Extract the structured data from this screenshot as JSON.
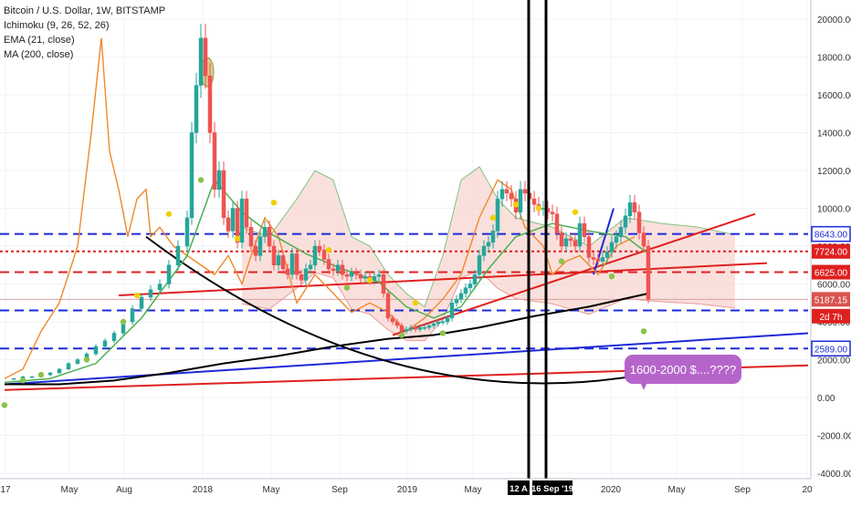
{
  "legend": {
    "symbol": "Bitcoin / U.S. Dollar, 1W, BITSTAMP",
    "ichimoku": "Ichimoku (9, 26, 52, 26)",
    "ema": "EMA (21, close)",
    "ma": "MA (200, close)"
  },
  "callout": {
    "text": "1600-2000 $....????"
  },
  "colors": {
    "up_candle": "#26a69a",
    "down_candle": "#ef5350",
    "ema": "#4caf50",
    "ma200": "#000000",
    "orange_line": "#f0892b",
    "blue_dashed": "#1c2ad8",
    "red_level": "#e02020",
    "callout": "#b565c9"
  },
  "chart_data": {
    "type": "candlestick",
    "y_axis": {
      "range": [
        -4000,
        21000
      ],
      "ticks": [
        "20000.00",
        "18000.00",
        "16000.00",
        "14000.00",
        "12000.00",
        "10000.00",
        "8000.00",
        "6000.00",
        "4000.00",
        "2000.00",
        "0.00",
        "-2000.00",
        "-4000.00"
      ]
    },
    "x_axis": {
      "ticks": [
        "17",
        "May",
        "Aug",
        "2018",
        "May",
        "Sep",
        "2019",
        "May",
        "12 A",
        "16 Sep '19",
        "2020",
        "May",
        "Sep",
        "20"
      ]
    },
    "price_labels": [
      {
        "text": "8643.00",
        "value": 8643,
        "style": "blue"
      },
      {
        "text": "7724.00",
        "value": 7724,
        "style": "red"
      },
      {
        "text": "6625.00",
        "value": 6625,
        "style": "red"
      },
      {
        "text": "5187.15",
        "value": 5187.15,
        "style": "current"
      },
      {
        "text": "2d 7h",
        "value": 4300,
        "style": "countdown"
      },
      {
        "text": "2589.00",
        "value": 2589,
        "style": "blue"
      }
    ],
    "horizontal_levels": [
      {
        "value": 8643,
        "style": "blue-dashed"
      },
      {
        "value": 7724,
        "style": "red-dotted"
      },
      {
        "value": 6625,
        "style": "red-dashed"
      },
      {
        "value": 4600,
        "style": "blue-dashed"
      },
      {
        "value": 2589,
        "style": "blue-dashed"
      }
    ],
    "vertical_markers": [
      "12 A",
      "16 Sep '19"
    ],
    "series": [
      {
        "kind": "price",
        "points": [
          [
            0,
            1000
          ],
          [
            10,
            1000
          ],
          [
            20,
            1100
          ],
          [
            30,
            1100
          ],
          [
            40,
            1200
          ],
          [
            50,
            1300
          ],
          [
            60,
            1500
          ],
          [
            70,
            1800
          ],
          [
            80,
            2000
          ],
          [
            90,
            2300
          ],
          [
            100,
            2700
          ],
          [
            110,
            3000
          ],
          [
            120,
            3400
          ],
          [
            130,
            4000
          ],
          [
            140,
            4700
          ],
          [
            150,
            5300
          ],
          [
            160,
            5700
          ],
          [
            170,
            6000
          ],
          [
            180,
            7000
          ],
          [
            190,
            8000
          ],
          [
            200,
            9500
          ],
          [
            205,
            14000
          ],
          [
            210,
            16500
          ],
          [
            215,
            19000
          ],
          [
            220,
            17000
          ],
          [
            225,
            14000
          ],
          [
            230,
            11000
          ],
          [
            235,
            12000
          ],
          [
            240,
            9500
          ],
          [
            245,
            8800
          ],
          [
            250,
            10000
          ],
          [
            255,
            8200
          ],
          [
            260,
            10500
          ],
          [
            265,
            9000
          ],
          [
            270,
            8000
          ],
          [
            275,
            7500
          ],
          [
            280,
            8500
          ],
          [
            285,
            9000
          ],
          [
            290,
            8000
          ],
          [
            295,
            7000
          ],
          [
            300,
            7500
          ],
          [
            305,
            6800
          ],
          [
            310,
            6500
          ],
          [
            315,
            7600
          ],
          [
            320,
            6500
          ],
          [
            325,
            6200
          ],
          [
            330,
            6800
          ],
          [
            335,
            7000
          ],
          [
            340,
            8000
          ],
          [
            345,
            7800
          ],
          [
            350,
            7300
          ],
          [
            355,
            6800
          ],
          [
            360,
            6700
          ],
          [
            365,
            7000
          ],
          [
            370,
            6500
          ],
          [
            375,
            6400
          ],
          [
            380,
            6600
          ],
          [
            385,
            6500
          ],
          [
            390,
            6300
          ],
          [
            395,
            6400
          ],
          [
            400,
            6200
          ],
          [
            405,
            6400
          ],
          [
            410,
            6500
          ],
          [
            415,
            5500
          ],
          [
            420,
            4200
          ],
          [
            425,
            4000
          ],
          [
            430,
            3800
          ],
          [
            435,
            3500
          ],
          [
            440,
            3600
          ],
          [
            445,
            3700
          ],
          [
            450,
            3600
          ],
          [
            455,
            3700
          ],
          [
            460,
            3700
          ],
          [
            465,
            3800
          ],
          [
            470,
            3900
          ],
          [
            475,
            4000
          ],
          [
            480,
            4000
          ],
          [
            485,
            4200
          ],
          [
            490,
            5000
          ],
          [
            495,
            5200
          ],
          [
            500,
            5500
          ],
          [
            505,
            5800
          ],
          [
            510,
            6000
          ],
          [
            515,
            6500
          ],
          [
            520,
            7500
          ],
          [
            525,
            8000
          ],
          [
            530,
            8200
          ],
          [
            535,
            8800
          ],
          [
            540,
            10500
          ],
          [
            545,
            11000
          ],
          [
            550,
            10800
          ],
          [
            555,
            10500
          ],
          [
            560,
            9800
          ],
          [
            565,
            11000
          ],
          [
            570,
            10800
          ],
          [
            575,
            10500
          ],
          [
            580,
            10200
          ],
          [
            585,
            10000
          ],
          [
            590,
            10000
          ],
          [
            595,
            9800
          ],
          [
            600,
            9700
          ],
          [
            605,
            8700
          ],
          [
            610,
            8000
          ],
          [
            615,
            8400
          ],
          [
            620,
            8300
          ],
          [
            625,
            8000
          ],
          [
            630,
            9200
          ],
          [
            635,
            8500
          ],
          [
            640,
            7400
          ],
          [
            645,
            7300
          ],
          [
            650,
            7200
          ],
          [
            655,
            7400
          ],
          [
            660,
            7700
          ],
          [
            665,
            8200
          ],
          [
            670,
            8500
          ],
          [
            675,
            9000
          ],
          [
            680,
            9600
          ],
          [
            685,
            10300
          ],
          [
            690,
            9800
          ],
          [
            695,
            8700
          ],
          [
            700,
            8000
          ],
          [
            705,
            5187
          ]
        ]
      },
      {
        "kind": "ema",
        "points": [
          [
            0,
            800
          ],
          [
            50,
            1000
          ],
          [
            100,
            1800
          ],
          [
            150,
            4200
          ],
          [
            200,
            7500
          ],
          [
            230,
            11500
          ],
          [
            260,
            9800
          ],
          [
            290,
            8700
          ],
          [
            330,
            7600
          ],
          [
            370,
            6800
          ],
          [
            410,
            6100
          ],
          [
            440,
            4800
          ],
          [
            470,
            4200
          ],
          [
            500,
            4800
          ],
          [
            530,
            6800
          ],
          [
            560,
            8500
          ],
          [
            600,
            9200
          ],
          [
            640,
            8800
          ],
          [
            680,
            8500
          ],
          [
            705,
            7600
          ]
        ]
      },
      {
        "kind": "ma200",
        "points": [
          [
            0,
            700
          ],
          [
            60,
            700
          ],
          [
            120,
            900
          ],
          [
            180,
            1300
          ],
          [
            240,
            1800
          ],
          [
            300,
            2200
          ],
          [
            360,
            2700
          ],
          [
            420,
            3100
          ],
          [
            470,
            3300
          ],
          [
            520,
            3700
          ],
          [
            580,
            4300
          ],
          [
            640,
            4800
          ],
          [
            705,
            5500
          ]
        ]
      },
      {
        "kind": "orange",
        "points": [
          [
            0,
            1000
          ],
          [
            20,
            1500
          ],
          [
            40,
            3500
          ],
          [
            60,
            5000
          ],
          [
            80,
            8000
          ],
          [
            95,
            14000
          ],
          [
            106,
            19000
          ],
          [
            115,
            13000
          ],
          [
            125,
            11000
          ],
          [
            135,
            8500
          ],
          [
            145,
            10500
          ],
          [
            155,
            11000
          ],
          [
            160,
            8500
          ],
          [
            170,
            9000
          ],
          [
            185,
            8000
          ],
          [
            200,
            7500
          ],
          [
            215,
            7000
          ],
          [
            230,
            6500
          ],
          [
            245,
            7500
          ],
          [
            260,
            6000
          ],
          [
            270,
            7500
          ],
          [
            285,
            9500
          ],
          [
            300,
            8500
          ],
          [
            320,
            5000
          ],
          [
            340,
            6500
          ],
          [
            360,
            5500
          ],
          [
            380,
            4500
          ],
          [
            400,
            5000
          ],
          [
            420,
            4500
          ],
          [
            440,
            3500
          ],
          [
            460,
            4200
          ],
          [
            480,
            5200
          ],
          [
            500,
            6500
          ],
          [
            520,
            9500
          ],
          [
            540,
            11500
          ],
          [
            555,
            11000
          ],
          [
            570,
            9000
          ],
          [
            590,
            8000
          ],
          [
            600,
            6500
          ],
          [
            615,
            7200
          ],
          [
            630,
            7500
          ],
          [
            650,
            6500
          ],
          [
            670,
            8000
          ],
          [
            690,
            8500
          ]
        ]
      },
      {
        "kind": "ichimoku_cloud_edge",
        "points": [
          [
            260,
            9000
          ],
          [
            290,
            8500
          ],
          [
            320,
            10500
          ],
          [
            340,
            12000
          ],
          [
            360,
            11500
          ],
          [
            380,
            8500
          ],
          [
            400,
            8000
          ],
          [
            420,
            6500
          ],
          [
            440,
            5500
          ],
          [
            460,
            4800
          ],
          [
            480,
            7500
          ],
          [
            500,
            11500
          ],
          [
            520,
            12200
          ],
          [
            540,
            10500
          ],
          [
            560,
            9500
          ],
          [
            600,
            9000
          ],
          [
            640,
            8000
          ],
          [
            680,
            9500
          ],
          [
            720,
            9200
          ],
          [
            760,
            9000
          ],
          [
            800,
            8600
          ]
        ]
      }
    ]
  }
}
